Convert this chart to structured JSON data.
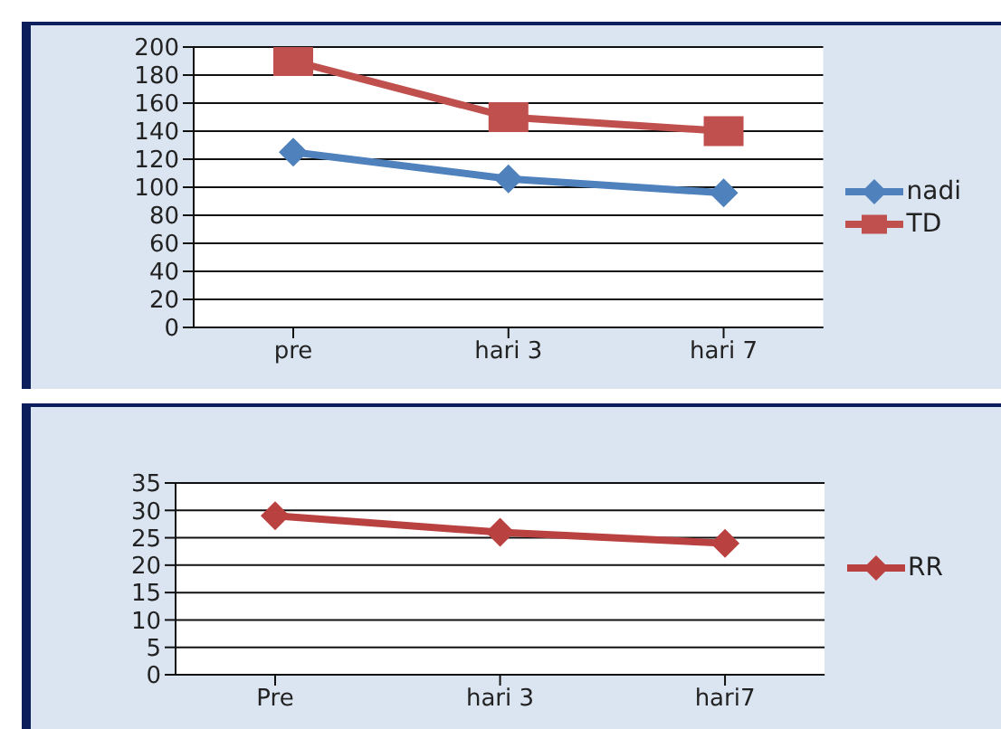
{
  "chart_data": [
    {
      "type": "line",
      "categories": [
        "pre",
        "hari 3",
        "hari 7"
      ],
      "series": [
        {
          "name": "nadi",
          "color": "#4f81bd",
          "values": [
            125,
            106,
            96
          ],
          "marker": "diamond"
        },
        {
          "name": "TD",
          "color": "#c0504d",
          "values": [
            190,
            150,
            140
          ],
          "marker": "square"
        }
      ],
      "ylim": [
        0,
        200
      ],
      "yticks": [
        0,
        20,
        40,
        60,
        80,
        100,
        120,
        140,
        160,
        180,
        200
      ],
      "grid": "y",
      "legend": "right"
    },
    {
      "type": "line",
      "categories": [
        "Pre",
        "hari 3",
        "hari7"
      ],
      "series": [
        {
          "name": "RR",
          "color": "#b9413f",
          "values": [
            29,
            26,
            24
          ],
          "marker": "diamond"
        }
      ],
      "ylim": [
        0,
        35
      ],
      "yticks": [
        0,
        5,
        10,
        15,
        20,
        25,
        30,
        35
      ],
      "grid": "y",
      "legend": "right"
    }
  ]
}
